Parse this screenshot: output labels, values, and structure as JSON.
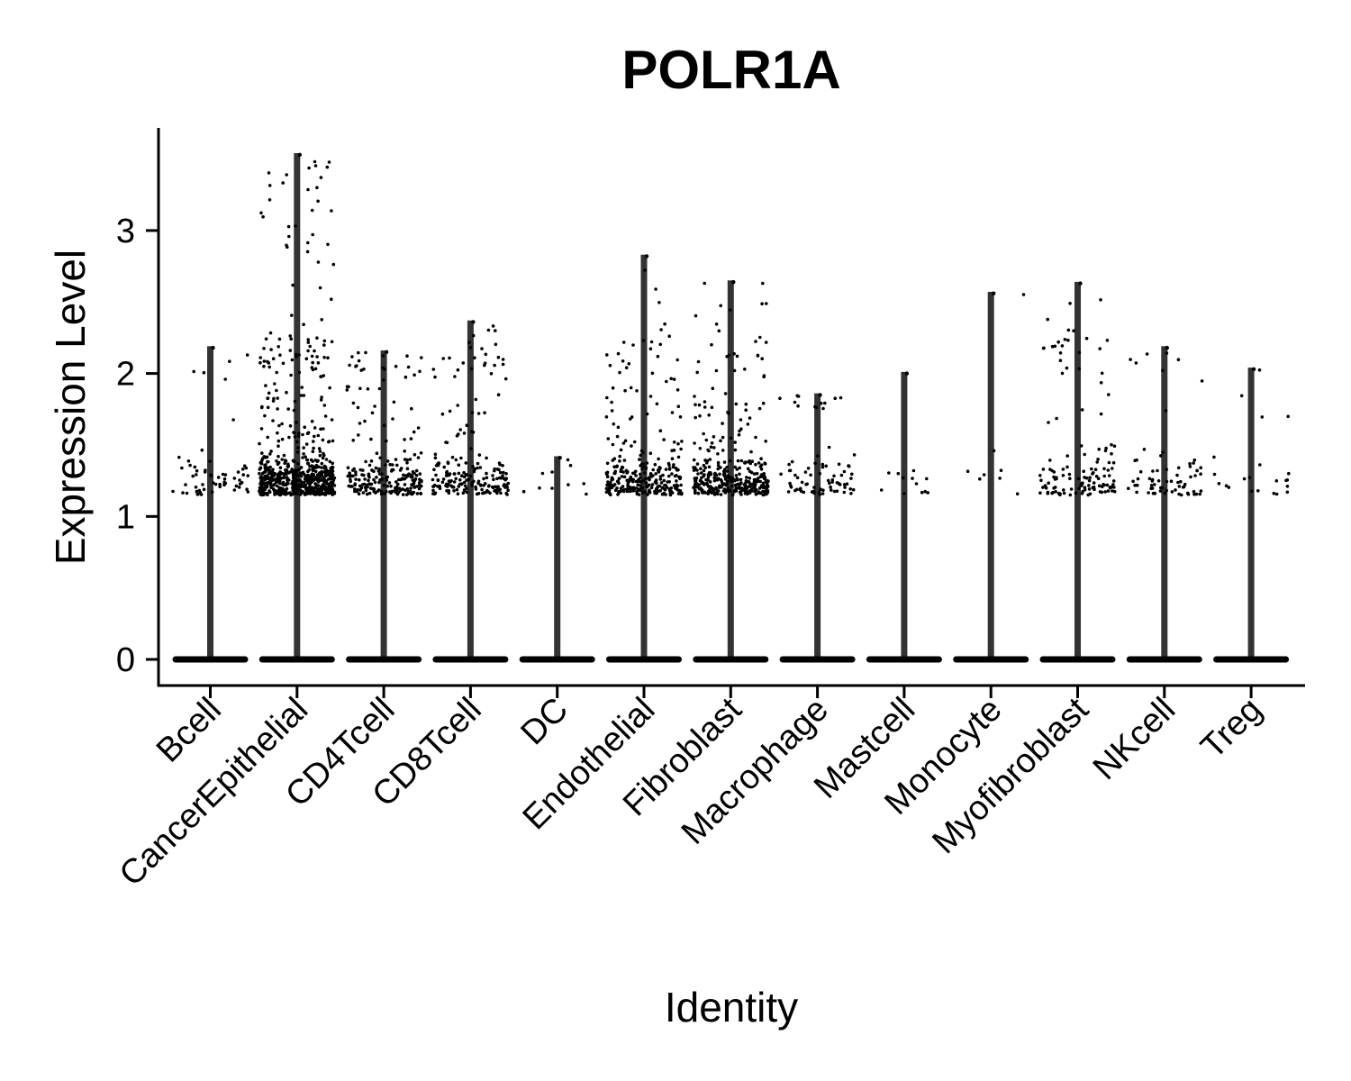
{
  "chart_data": {
    "type": "violin",
    "title": "POLR1A",
    "xlabel": "Identity",
    "ylabel": "Expression Level",
    "ylim": [
      -0.17,
      3.7
    ],
    "yticks": [
      0,
      1,
      2,
      3
    ],
    "grid": false,
    "legend": "none",
    "categories": [
      "Bcell",
      "CancerEpithelial",
      "CD4Tcell",
      "CD8Tcell",
      "DC",
      "Endothelial",
      "Fibroblast",
      "Macrophage",
      "Mastcell",
      "Monocyte",
      "Myofibroblast",
      "NKcell",
      "Treg"
    ],
    "max_values": [
      2.18,
      3.53,
      2.15,
      2.36,
      1.41,
      2.82,
      2.64,
      1.85,
      2.0,
      2.56,
      2.63,
      2.18,
      2.03
    ],
    "point_density": [
      60,
      700,
      220,
      200,
      10,
      300,
      360,
      80,
      12,
      8,
      130,
      70,
      22
    ]
  }
}
